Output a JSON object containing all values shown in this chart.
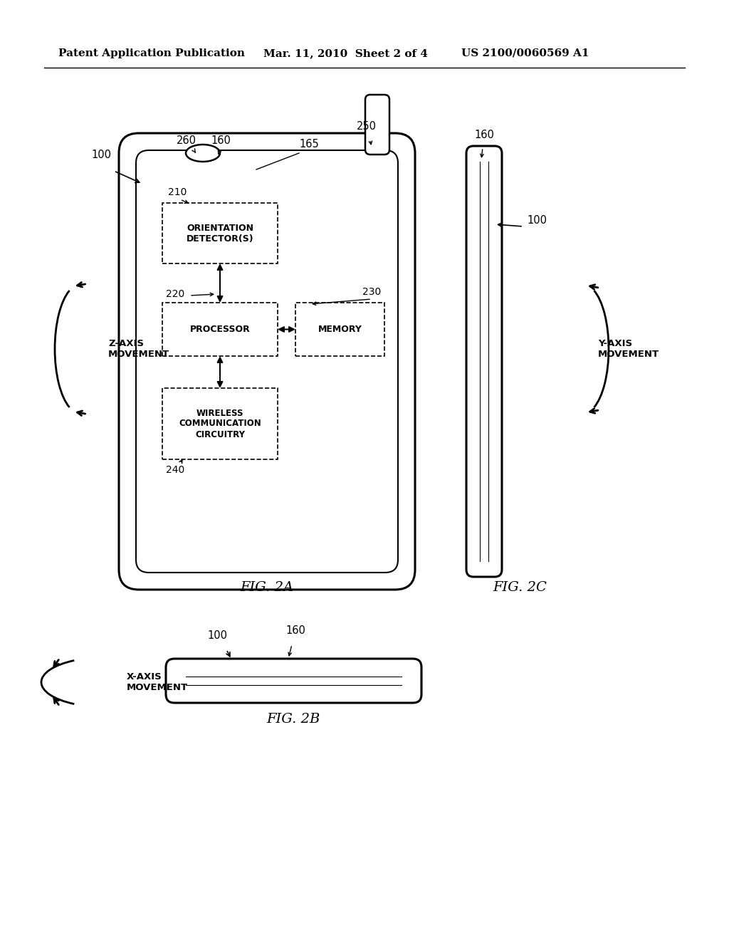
{
  "bg_color": "#ffffff",
  "header_left": "Patent Application Publication",
  "header_mid": "Mar. 11, 2010  Sheet 2 of 4",
  "header_right": "US 2100/0060569 A1",
  "fig2a_label": "FIG. 2A",
  "fig2b_label": "FIG. 2B",
  "fig2c_label": "FIG. 2C",
  "label_100a": "100",
  "label_100b": "100",
  "label_100c": "100",
  "label_160a": "160",
  "label_160b": "160",
  "label_160c": "160",
  "label_165": "165",
  "label_210": "210",
  "label_220": "220",
  "label_230": "230",
  "label_240": "240",
  "label_250": "250",
  "label_260": "260",
  "text_orientation": "ORIENTATION\nDETECTOR(S)",
  "text_processor": "PROCESSOR",
  "text_memory": "MEMORY",
  "text_wireless": "WIRELESS\nCOMMUNICATION\nCIRCUITRY",
  "text_zaxis": "Z-AXIS\nMOVEMENT",
  "text_yaxis": "Y-AXIS\nMOVEMENT",
  "text_xaxis": "X-AXIS\nMOVEMENT"
}
